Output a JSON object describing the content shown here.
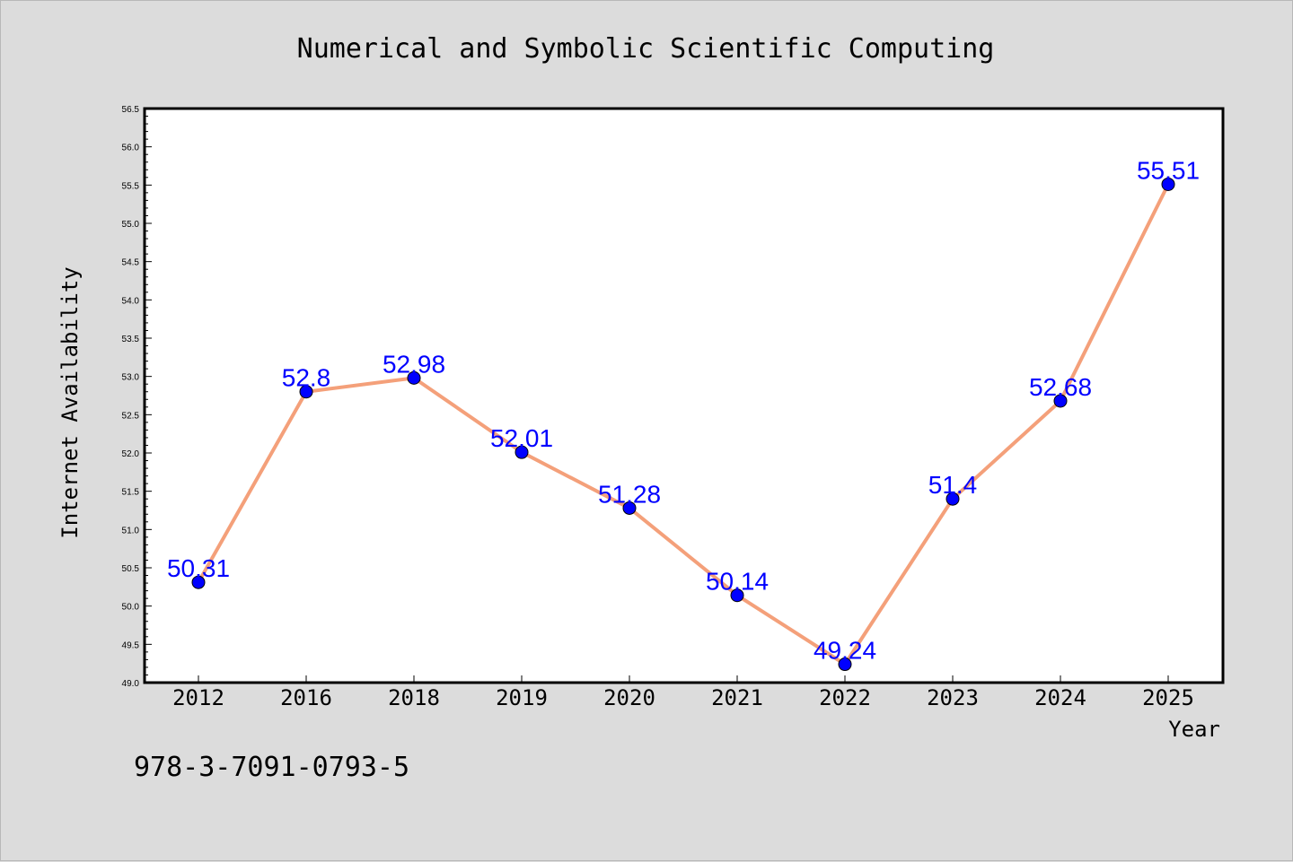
{
  "chart_data": {
    "type": "line",
    "title": "Numerical and Symbolic Scientific Computing",
    "xlabel": "Year",
    "ylabel": "Internet Availability",
    "categories": [
      "2012",
      "2016",
      "2018",
      "2019",
      "2020",
      "2021",
      "2022",
      "2023",
      "2024",
      "2025"
    ],
    "values": [
      50.31,
      52.8,
      52.98,
      52.01,
      51.28,
      50.14,
      49.24,
      51.4,
      52.68,
      55.51
    ],
    "data_labels": [
      "50.31",
      "52.8",
      "52.98",
      "52.01",
      "51.28",
      "50.14",
      "49.24",
      "51.4",
      "52.68",
      "55.51"
    ],
    "ylim": [
      49.0,
      56.5
    ],
    "yticks": [
      "49.0",
      "49.5",
      "50.0",
      "50.5",
      "51.0",
      "51.5",
      "52.0",
      "52.5",
      "53.0",
      "53.5",
      "54.0",
      "54.5",
      "55.0",
      "55.5",
      "56.0",
      "56.5"
    ],
    "grid": false,
    "line_color": "#f4a07a",
    "marker_color": "#0000ff",
    "label_color": "#0000ff"
  },
  "annotation": {
    "isbn": "978-3-7091-0793-5"
  }
}
